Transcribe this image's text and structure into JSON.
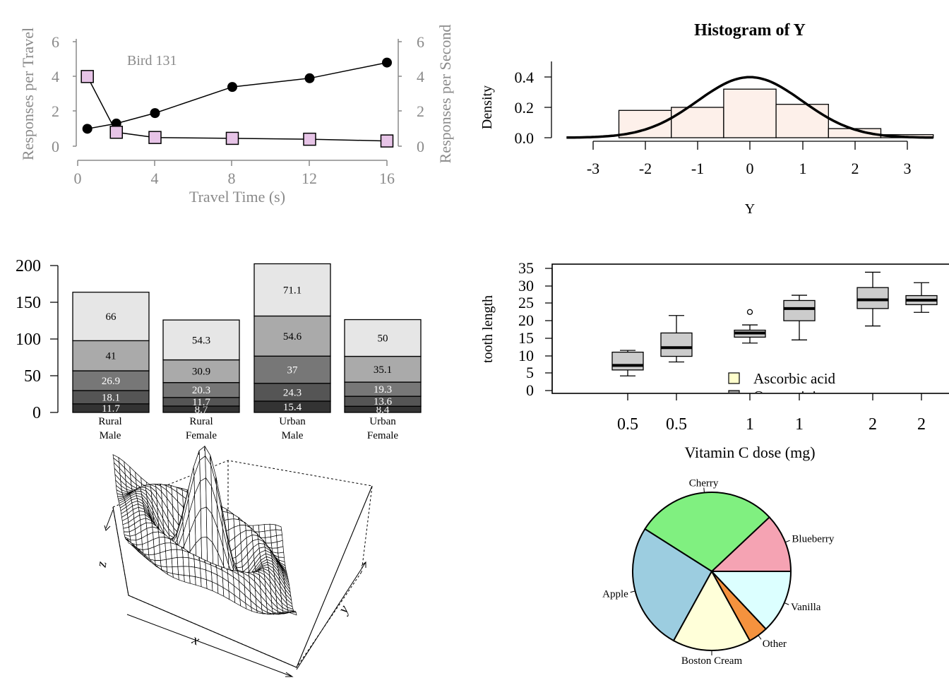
{
  "chart_data": [
    {
      "id": "travel",
      "type": "line",
      "annotation": "Bird 131",
      "xlabel": "Travel Time (s)",
      "ylabel": "Responses per Travel",
      "ylabel_right": "Responses per Second",
      "xlim": [
        0,
        16
      ],
      "ylim": [
        0,
        6
      ],
      "xticks": [
        "0",
        "4",
        "8",
        "12",
        "16"
      ],
      "yticks": [
        "0",
        "2",
        "4",
        "6"
      ],
      "yticks_right": [
        "0",
        "2",
        "4",
        "6"
      ],
      "series": [
        {
          "marker": "circle",
          "color": "#000000",
          "x": [
            0.5,
            2,
            4,
            8,
            12,
            16
          ],
          "y": [
            1.0,
            1.3,
            1.9,
            3.4,
            3.9,
            4.8
          ]
        },
        {
          "marker": "square",
          "color": "#e7c4e7",
          "x": [
            0.5,
            2,
            4,
            8,
            12,
            16
          ],
          "y": [
            4.0,
            0.8,
            0.5,
            0.45,
            0.4,
            0.3
          ]
        }
      ]
    },
    {
      "id": "hist",
      "type": "bar",
      "title": "Histogram of Y",
      "xlabel": "Y",
      "ylabel": "Density",
      "bin_edges": [
        -2.5,
        -1.5,
        -0.5,
        0.5,
        1.5,
        2.5,
        3.5
      ],
      "density": [
        0.18,
        0.2,
        0.32,
        0.22,
        0.06,
        0.02
      ],
      "fill": "#fdf0ea",
      "curve": "standard normal density",
      "xticks": [
        "-3",
        "-2",
        "-1",
        "0",
        "1",
        "2",
        "3"
      ],
      "yticks": [
        "0.0",
        "0.2",
        "0.4"
      ]
    },
    {
      "id": "stacked",
      "type": "bar",
      "stacked": true,
      "ylim": [
        0,
        200
      ],
      "yticks": [
        "0",
        "50",
        "100",
        "150",
        "200"
      ],
      "categories": [
        [
          "Rural",
          "Male"
        ],
        [
          "Rural",
          "Female"
        ],
        [
          "Urban",
          "Male"
        ],
        [
          "Urban",
          "Female"
        ]
      ],
      "segment_colors": [
        "#333333",
        "#555555",
        "#777777",
        "#aaaaaa",
        "#e6e6e6"
      ],
      "segments": [
        [
          11.7,
          18.1,
          26.9,
          41,
          66
        ],
        [
          8.7,
          11.7,
          20.3,
          30.9,
          54.3
        ],
        [
          15.4,
          24.3,
          37,
          54.6,
          71.1
        ],
        [
          8.4,
          13.6,
          19.3,
          35.1,
          50
        ]
      ]
    },
    {
      "id": "tooth",
      "type": "box",
      "xlabel": "Vitamin C dose (mg)",
      "ylabel": "tooth length",
      "ylim": [
        0,
        35
      ],
      "yticks": [
        "0",
        "5",
        "10",
        "15",
        "20",
        "25",
        "30",
        "35"
      ],
      "legend": {
        "position": "bottom-center",
        "items": [
          {
            "label": "Ascorbic acid",
            "color": "#ffffcc"
          },
          {
            "label": "Orange juice",
            "color": "#999999"
          }
        ]
      },
      "boxes": [
        {
          "label": "0.5",
          "color": "#cccccc",
          "whisker_low": 4.2,
          "q1": 5.9,
          "median": 7.2,
          "q3": 11.0,
          "whisker_high": 11.5,
          "outliers": []
        },
        {
          "label": "0.5",
          "color": "#cccccc",
          "whisker_low": 8.2,
          "q1": 9.8,
          "median": 12.3,
          "q3": 16.5,
          "whisker_high": 21.5,
          "outliers": []
        },
        {
          "label": "1",
          "color": "#cccccc",
          "whisker_low": 13.6,
          "q1": 15.3,
          "median": 16.5,
          "q3": 17.3,
          "whisker_high": 18.8,
          "outliers": [
            22.5
          ]
        },
        {
          "label": "1",
          "color": "#cccccc",
          "whisker_low": 14.5,
          "q1": 20.0,
          "median": 23.5,
          "q3": 25.8,
          "whisker_high": 27.3,
          "outliers": []
        },
        {
          "label": "2",
          "color": "#cccccc",
          "whisker_low": 18.5,
          "q1": 23.5,
          "median": 26.0,
          "q3": 29.5,
          "whisker_high": 33.9,
          "outliers": []
        },
        {
          "label": "2",
          "color": "#cccccc",
          "whisker_low": 22.4,
          "q1": 24.6,
          "median": 25.9,
          "q3": 27.2,
          "whisker_high": 30.9,
          "outliers": []
        }
      ]
    },
    {
      "id": "surface",
      "type": "surface",
      "function": "sin(r)/r",
      "axis_labels": {
        "x": "x",
        "y": "y",
        "z": "z"
      }
    },
    {
      "id": "pie",
      "type": "pie",
      "slices": [
        {
          "label": "Blueberry",
          "value": 12,
          "color": "#f5a3b3"
        },
        {
          "label": "Cherry",
          "value": 29,
          "color": "#80f080"
        },
        {
          "label": "Apple",
          "value": 26,
          "color": "#9ccde0"
        },
        {
          "label": "Boston Cream",
          "value": 16,
          "color": "#ffffd9"
        },
        {
          "label": "Other",
          "value": 4,
          "color": "#f5923e"
        },
        {
          "label": "Vanilla",
          "value": 13,
          "color": "#dcffff"
        }
      ]
    }
  ]
}
